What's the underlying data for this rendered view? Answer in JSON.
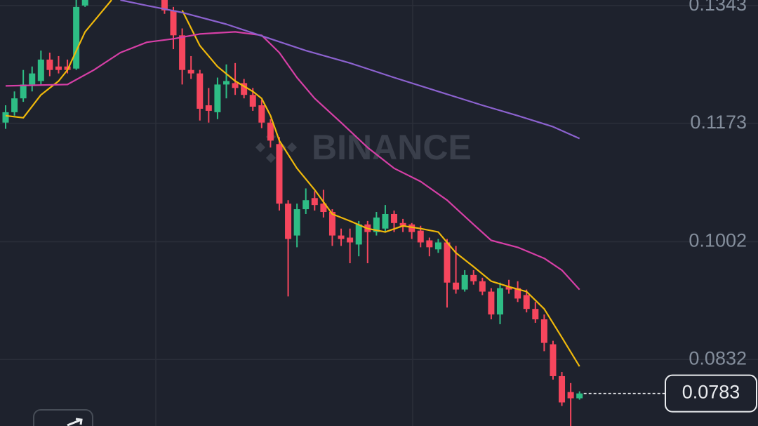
{
  "chart_data": {
    "type": "candlestick",
    "watermark": "BINANCE",
    "ylim": [
      0.0736,
      0.1351
    ],
    "yticks": [
      0.1343,
      0.1173,
      0.1002,
      0.0832
    ],
    "grid": true,
    "up_color": "#2ebd85",
    "down_color": "#f6465d",
    "open": [
      0.1174,
      0.1189,
      0.1209,
      0.1229,
      0.1234,
      0.1265,
      0.1255,
      0.1255,
      0.1252,
      0.1343,
      null,
      null,
      null,
      null,
      null,
      null,
      null,
      null,
      0.1351,
      0.1336,
      0.13,
      0.125,
      0.1245,
      0.1199,
      0.1189,
      0.1229,
      0.1231,
      0.1231,
      0.1214,
      0.1199,
      0.1174,
      0.1143,
      0.1057,
      0.1011,
      0.1049,
      0.1065,
      0.1057,
      0.1045,
      0.1011,
      0.1008,
      0.0998,
      0.1027,
      0.1016,
      0.1021,
      0.1042,
      0.1029,
      0.1027,
      0.1018,
      0.1004,
      0.0991,
      0.1001,
      0.0943,
      0.0933,
      0.0954,
      0.0945,
      0.093,
      0.0897,
      0.0937,
      0.0935,
      0.0925,
      0.0905,
      0.089,
      0.0854,
      0.0808,
      0.0785,
      0.0776
    ],
    "high": [
      0.1199,
      0.1219,
      0.125,
      0.1255,
      0.1278,
      0.1275,
      0.127,
      0.1265,
      0.1351,
      0.1351,
      null,
      null,
      null,
      null,
      null,
      null,
      null,
      null,
      0.1351,
      0.1341,
      0.131,
      0.127,
      0.125,
      0.1224,
      0.1239,
      0.1258,
      0.126,
      0.1237,
      0.1224,
      0.1207,
      0.1179,
      0.1153,
      0.1062,
      0.1057,
      0.1079,
      0.1075,
      0.1077,
      0.1049,
      0.1021,
      0.1021,
      0.1032,
      0.1032,
      0.1045,
      0.1055,
      0.1047,
      0.1035,
      0.1029,
      0.1025,
      0.1008,
      0.1006,
      0.1006,
      0.0996,
      0.0961,
      0.0961,
      0.095,
      0.0935,
      0.0943,
      0.0947,
      0.0945,
      0.0933,
      0.0915,
      0.0897,
      0.0859,
      0.0814,
      0.0798,
      0.0786
    ],
    "low": [
      0.1165,
      0.1184,
      0.1204,
      0.1219,
      0.1229,
      0.1241,
      0.1245,
      0.1245,
      0.125,
      0.1341,
      null,
      null,
      null,
      null,
      null,
      null,
      null,
      null,
      0.1331,
      0.128,
      0.1229,
      0.1237,
      0.1177,
      0.1174,
      0.1179,
      0.1209,
      0.1214,
      0.1209,
      0.1191,
      0.1166,
      0.1138,
      0.1047,
      0.0923,
      0.0994,
      0.1042,
      0.1047,
      0.1037,
      0.0996,
      0.0996,
      0.0971,
      0.0981,
      0.0971,
      0.1011,
      0.1016,
      0.1016,
      0.1016,
      0.1006,
      0.0994,
      0.0981,
      0.0986,
      0.0907,
      0.0927,
      0.093,
      0.094,
      0.0925,
      0.089,
      0.0883,
      0.0927,
      0.0915,
      0.09,
      0.0885,
      0.0844,
      0.0803,
      0.0765,
      0.0736,
      0.0774
    ],
    "close": [
      0.1189,
      0.1209,
      0.1229,
      0.1245,
      0.1265,
      0.125,
      0.125,
      0.125,
      0.1341,
      0.1351,
      null,
      null,
      null,
      null,
      null,
      null,
      null,
      null,
      0.1336,
      0.13,
      0.125,
      0.1245,
      0.1194,
      0.1191,
      0.1229,
      0.1234,
      0.1224,
      0.1214,
      0.1197,
      0.1174,
      0.1148,
      0.1057,
      0.1006,
      0.1049,
      0.1062,
      0.1055,
      0.1045,
      0.1011,
      0.1006,
      0.1001,
      0.1027,
      0.1016,
      0.1037,
      0.1042,
      0.1029,
      0.1025,
      0.1016,
      0.1001,
      0.0994,
      0.1001,
      0.0943,
      0.0933,
      0.0954,
      0.0945,
      0.093,
      0.0897,
      0.0935,
      0.0933,
      0.092,
      0.0905,
      0.089,
      0.0856,
      0.0808,
      0.077,
      0.0776,
      0.0783
    ],
    "lines": [
      {
        "color": "#f0b90b",
        "x": [
          0,
          2,
          4,
          6,
          7,
          9,
          12,
          16,
          20,
          22,
          24,
          26,
          28,
          29,
          30,
          31,
          33,
          35,
          37,
          39,
          41,
          43,
          45,
          47,
          49,
          51,
          53,
          55,
          57,
          59,
          61,
          63,
          65
        ],
        "values": [
          0.1184,
          0.1181,
          0.1214,
          0.1234,
          0.125,
          0.1305,
          0.1351,
          null,
          0.1336,
          0.1285,
          0.1255,
          0.1234,
          0.1219,
          0.1209,
          0.1184,
          0.1148,
          0.1108,
          0.1077,
          0.1042,
          0.1032,
          0.1021,
          0.1016,
          0.1025,
          0.1021,
          0.1016,
          0.0986,
          0.0966,
          0.0945,
          0.0937,
          0.093,
          0.0905,
          0.0864,
          0.0822
        ]
      },
      {
        "color": "#d63fa6",
        "x": [
          0,
          7,
          10,
          13,
          16,
          19,
          22,
          26,
          29,
          31,
          33,
          35,
          38,
          41,
          44,
          47,
          50,
          53,
          55,
          58,
          61,
          63,
          65
        ],
        "values": [
          0.1227,
          0.1229,
          0.125,
          0.1275,
          0.129,
          0.1295,
          0.1302,
          0.1305,
          0.13,
          0.1275,
          0.1239,
          0.1209,
          0.1174,
          0.1138,
          0.1108,
          0.1089,
          0.1062,
          0.1027,
          0.1004,
          0.0994,
          0.0978,
          0.0961,
          0.0933
        ]
      },
      {
        "color": "#8c62cf",
        "x": [
          13,
          16,
          20,
          25,
          30,
          34,
          39,
          44,
          49,
          54,
          58,
          62,
          65
        ],
        "values": [
          0.1351,
          0.1343,
          0.1333,
          0.1316,
          0.1295,
          0.1278,
          0.126,
          0.1239,
          0.1219,
          0.1199,
          0.1184,
          0.1168,
          0.1151
        ]
      }
    ]
  }
}
